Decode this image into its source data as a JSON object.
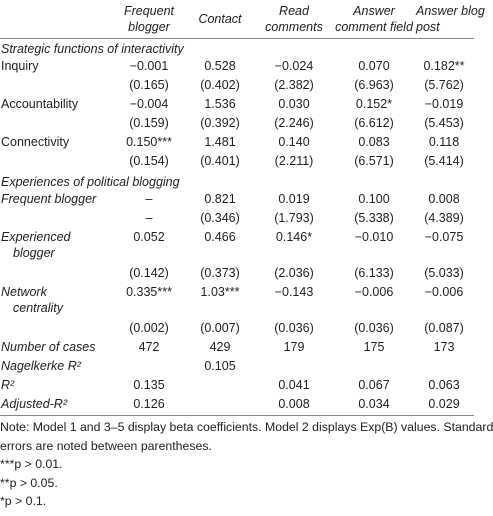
{
  "columns": [
    "",
    "Frequent blogger",
    "Contact",
    "Read comments",
    "Answer comment field",
    "Answer blog post"
  ],
  "header_lines": [
    [
      "",
      ""
    ],
    [
      "Frequent",
      "blogger"
    ],
    [
      "",
      "Contact"
    ],
    [
      "Read",
      "comments"
    ],
    [
      "Answer",
      "comment field"
    ],
    [
      "Answer blog",
      "post"
    ]
  ],
  "sections": {
    "strategic": "Strategic functions of interactivity",
    "experiences": "Experiences of political blogging"
  },
  "rows": [
    {
      "label": [
        "Inquiry"
      ],
      "values": [
        "−0.001",
        "0.528",
        "−0.024",
        "0.070",
        "0.182**"
      ]
    },
    {
      "label": [
        ""
      ],
      "values": [
        "(0.165)",
        "(0.402)",
        "(2.382)",
        "(6.963)",
        "(5.762)"
      ]
    },
    {
      "label": [
        "Accountability"
      ],
      "values": [
        "−0.004",
        "1.536",
        "0.030",
        "0.152*",
        "−0.019"
      ]
    },
    {
      "label": [
        ""
      ],
      "values": [
        "(0.159)",
        "(0.392)",
        "(2.246)",
        "(6.612)",
        "(5.453)"
      ]
    },
    {
      "label": [
        "Connectivity"
      ],
      "values": [
        "0.150***",
        "1.481",
        "0.140",
        "0.083",
        "0.118"
      ]
    },
    {
      "label": [
        ""
      ],
      "values": [
        "(0.154)",
        "(0.401)",
        "(2.211)",
        "(6.571)",
        "(5.414)"
      ]
    },
    {
      "label": [
        "Frequent blogger"
      ],
      "italic": true,
      "values": [
        "–",
        "0.821",
        "0.019",
        "0.100",
        "0.008"
      ]
    },
    {
      "label": [
        ""
      ],
      "values": [
        "–",
        "(0.346)",
        "(1.793)",
        "(5.338)",
        "(4.389)"
      ]
    },
    {
      "label": [
        "Experienced",
        "blogger"
      ],
      "italic": true,
      "values": [
        "0.052",
        "0.466",
        "0.146*",
        "−0.010",
        "−0.075"
      ]
    },
    {
      "label": [
        ""
      ],
      "values": [
        "(0.142)",
        "(0.373)",
        "(2.036)",
        "(6.133)",
        "(5.033)"
      ]
    },
    {
      "label": [
        "Network",
        "centrality"
      ],
      "italic": true,
      "values": [
        "0.335***",
        "1.03***",
        "−0.143",
        "−0.006",
        "−0.006"
      ]
    },
    {
      "label": [
        ""
      ],
      "values": [
        "(0.002)",
        "(0.007)",
        "(0.036)",
        "(0.036)",
        "(0.087)"
      ]
    },
    {
      "label": [
        "Number of cases"
      ],
      "italic": true,
      "values": [
        "472",
        "429",
        "179",
        "175",
        "173"
      ]
    },
    {
      "label": [
        "Nagelkerke R²"
      ],
      "italic": true,
      "values": [
        "",
        "0.105",
        "",
        "",
        ""
      ]
    },
    {
      "label": [
        "R²"
      ],
      "italic": true,
      "values": [
        "0.135",
        "",
        "0.041",
        "0.067",
        "0.063"
      ]
    },
    {
      "label": [
        "Adjusted-R²"
      ],
      "italic": true,
      "values": [
        "0.126",
        "",
        "0.008",
        "0.034",
        "0.029"
      ]
    }
  ],
  "notes": [
    "Note: Model 1 and 3–5 display beta coefficients. Model 2 displays Exp(B) values. Standard",
    "errors are noted between parentheses.",
    "***p > 0.01.",
    "**p > 0.05.",
    "*p > 0.1."
  ]
}
